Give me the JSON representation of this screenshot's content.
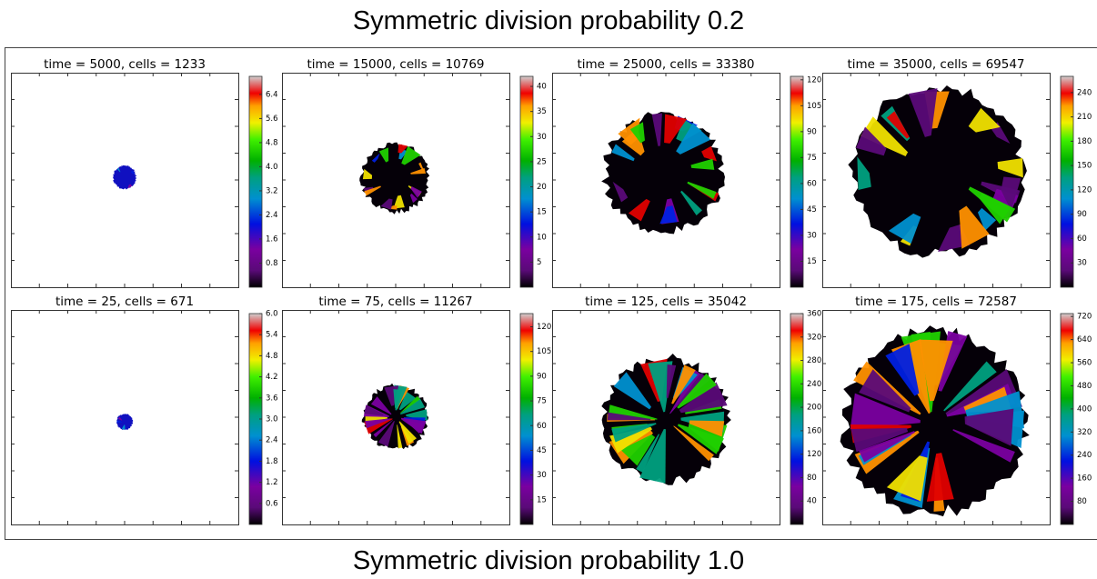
{
  "header": {
    "title": "Symmetric division probability 0.2"
  },
  "footer": {
    "title": "Symmetric division probability 1.0"
  },
  "chart_data": [
    {
      "type": "colormap",
      "title": "time = 5000, cells = 1233",
      "clim": [
        0,
        7
      ],
      "cticks": [
        0.8,
        1.6,
        2.4,
        3.2,
        {
          "value": 4,
          "label": "4.0"
        },
        4.8,
        5.6,
        6.4
      ]
    },
    {
      "type": "colormap",
      "title": "time = 15000, cells = 10769",
      "clim": [
        0,
        42
      ],
      "cticks": [
        5,
        10,
        15,
        20,
        25,
        30,
        35,
        40
      ]
    },
    {
      "type": "colormap",
      "title": "time = 25000, cells = 33380",
      "clim": [
        0,
        122
      ],
      "cticks": [
        15,
        30,
        45,
        60,
        75,
        90,
        105,
        120
      ]
    },
    {
      "type": "colormap",
      "title": "time = 35000, cells = 69547",
      "clim": [
        0,
        260
      ],
      "cticks": [
        30,
        60,
        90,
        120,
        150,
        180,
        210,
        240
      ]
    },
    {
      "type": "colormap",
      "title": "time = 25, cells = 671",
      "clim": [
        0,
        6
      ],
      "cticks": [
        0.6,
        1.2,
        1.8,
        2.4,
        {
          "value": 3,
          "label": "3.0"
        },
        3.6,
        4.2,
        4.8,
        5.4,
        {
          "value": 6,
          "label": "6.0"
        }
      ]
    },
    {
      "type": "colormap",
      "title": "time = 75, cells = 11267",
      "clim": [
        0,
        128
      ],
      "cticks": [
        15,
        30,
        45,
        60,
        75,
        90,
        105,
        120
      ]
    },
    {
      "type": "colormap",
      "title": "time = 125, cells = 35042",
      "clim": [
        0,
        360
      ],
      "cticks": [
        40,
        80,
        120,
        160,
        200,
        240,
        280,
        320,
        360
      ]
    },
    {
      "type": "colormap",
      "title": "time = 175, cells = 72587",
      "clim": [
        0,
        730
      ],
      "cticks": [
        80,
        160,
        240,
        320,
        400,
        480,
        560,
        640,
        720
      ]
    }
  ]
}
